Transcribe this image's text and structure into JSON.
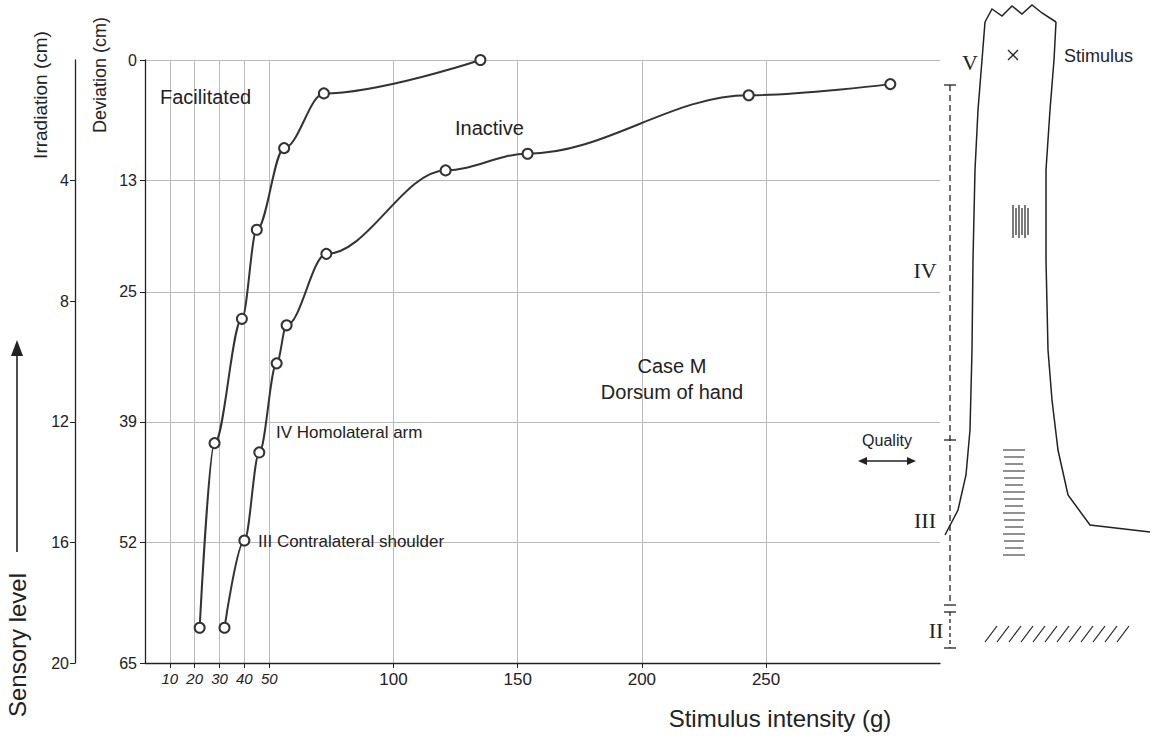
{
  "chart_data": {
    "type": "line",
    "x_label": "Stimulus intensity (g)",
    "y_label": "Deviation (cm)",
    "y2_label": "Irradiation (cm)",
    "xlim": [
      0,
      320
    ],
    "xticks": [
      10,
      20,
      30,
      40,
      50,
      100,
      150,
      200,
      250
    ],
    "ylim": [
      0,
      65
    ],
    "yticks": [
      0,
      13,
      25,
      39,
      52,
      65
    ],
    "y2lim": [
      0,
      20
    ],
    "y2ticks": [
      4,
      8,
      12,
      16,
      20
    ],
    "grid": true,
    "series": [
      {
        "name": "Facilitated",
        "color": "#333333",
        "marker": "circle",
        "line_style": "solid",
        "x": [
          22,
          28,
          39,
          45,
          56,
          72,
          135
        ],
        "values": [
          61.2,
          41.3,
          27.9,
          18.3,
          9.5,
          3.6,
          0
        ]
      },
      {
        "name": "Inactive",
        "color": "#333333",
        "marker": "circle",
        "line_style": "solid",
        "x": [
          32,
          40,
          46,
          53,
          57,
          73,
          121,
          154,
          243,
          300
        ],
        "values": [
          61.2,
          51.8,
          42.3,
          32.7,
          28.6,
          20.9,
          11.9,
          10.1,
          3.8,
          2.6
        ]
      }
    ],
    "annotations": [
      "Case M",
      "Dorsum of hand",
      "IV Homolateral arm",
      "III Contralateral shoulder",
      "Sensory level",
      "Quality",
      "Stimulus",
      "V",
      "IV",
      "III",
      "II"
    ]
  }
}
